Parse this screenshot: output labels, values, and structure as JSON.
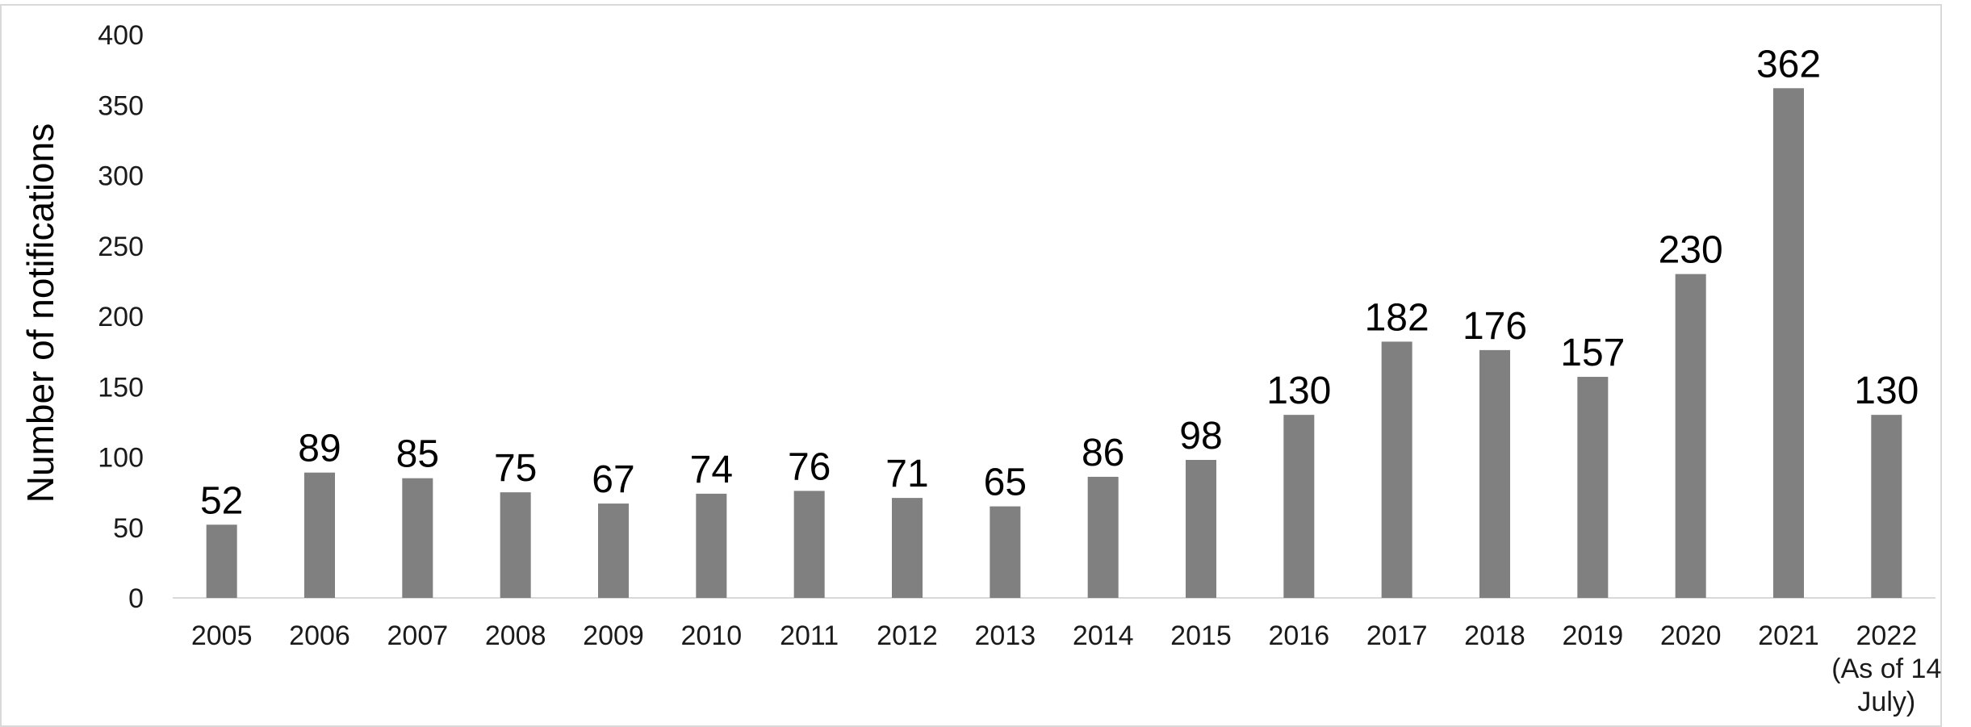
{
  "chart_data": {
    "type": "bar",
    "title": "",
    "xlabel": "",
    "ylabel": "Number of notifications",
    "categories": [
      "2005",
      "2006",
      "2007",
      "2008",
      "2009",
      "2010",
      "2011",
      "2012",
      "2013",
      "2014",
      "2015",
      "2016",
      "2017",
      "2018",
      "2019",
      "2020",
      "2021",
      "2022 (As of 14 July)"
    ],
    "category_label_lines": [
      [
        "2005"
      ],
      [
        "2006"
      ],
      [
        "2007"
      ],
      [
        "2008"
      ],
      [
        "2009"
      ],
      [
        "2010"
      ],
      [
        "2011"
      ],
      [
        "2012"
      ],
      [
        "2013"
      ],
      [
        "2014"
      ],
      [
        "2015"
      ],
      [
        "2016"
      ],
      [
        "2017"
      ],
      [
        "2018"
      ],
      [
        "2019"
      ],
      [
        "2020"
      ],
      [
        "2021"
      ],
      [
        "2022",
        "(As of 14",
        "July)"
      ]
    ],
    "values": [
      52,
      89,
      85,
      75,
      67,
      74,
      76,
      71,
      65,
      86,
      98,
      130,
      182,
      176,
      157,
      230,
      362,
      130
    ],
    "ylim": [
      0,
      400
    ],
    "yticks": [
      0,
      50,
      100,
      150,
      200,
      250,
      300,
      350,
      400
    ],
    "grid": false,
    "legend": "none",
    "data_labels": true,
    "colors": {
      "bar": "#808080",
      "axis_line": "#d9d9d9",
      "frame": "#d9d9d9"
    }
  }
}
